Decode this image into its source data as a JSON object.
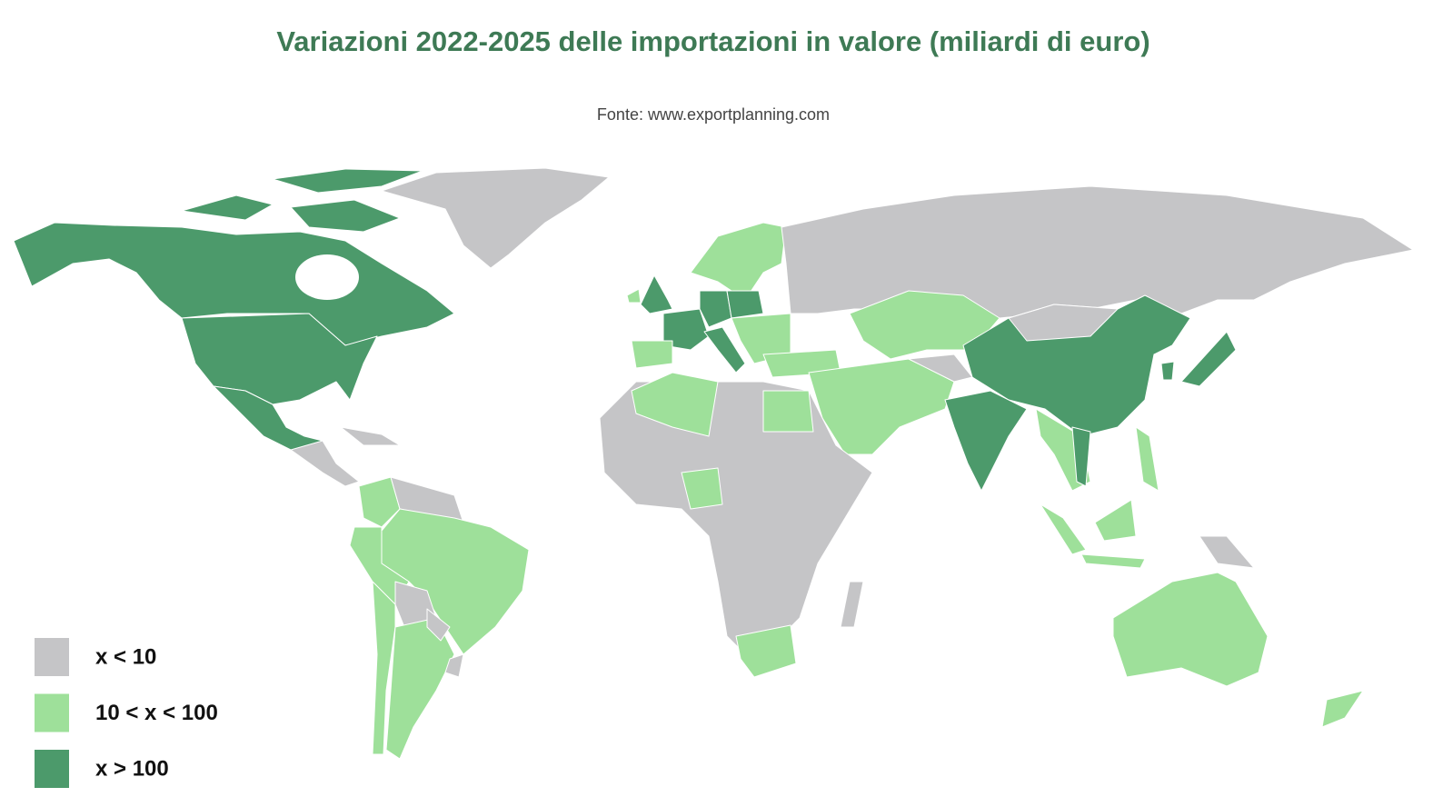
{
  "title": "Variazioni 2022-2025 delle importazioni in valore (miliardi di euro)",
  "subtitle": "Fonte: www.exportplanning.com",
  "legend": [
    {
      "label": "x < 10",
      "color": "#c5c5c7"
    },
    {
      "label": "10 < x < 100",
      "color": "#9ee09a"
    },
    {
      "label": "x > 100",
      "color": "#4c9a6b"
    }
  ]
}
